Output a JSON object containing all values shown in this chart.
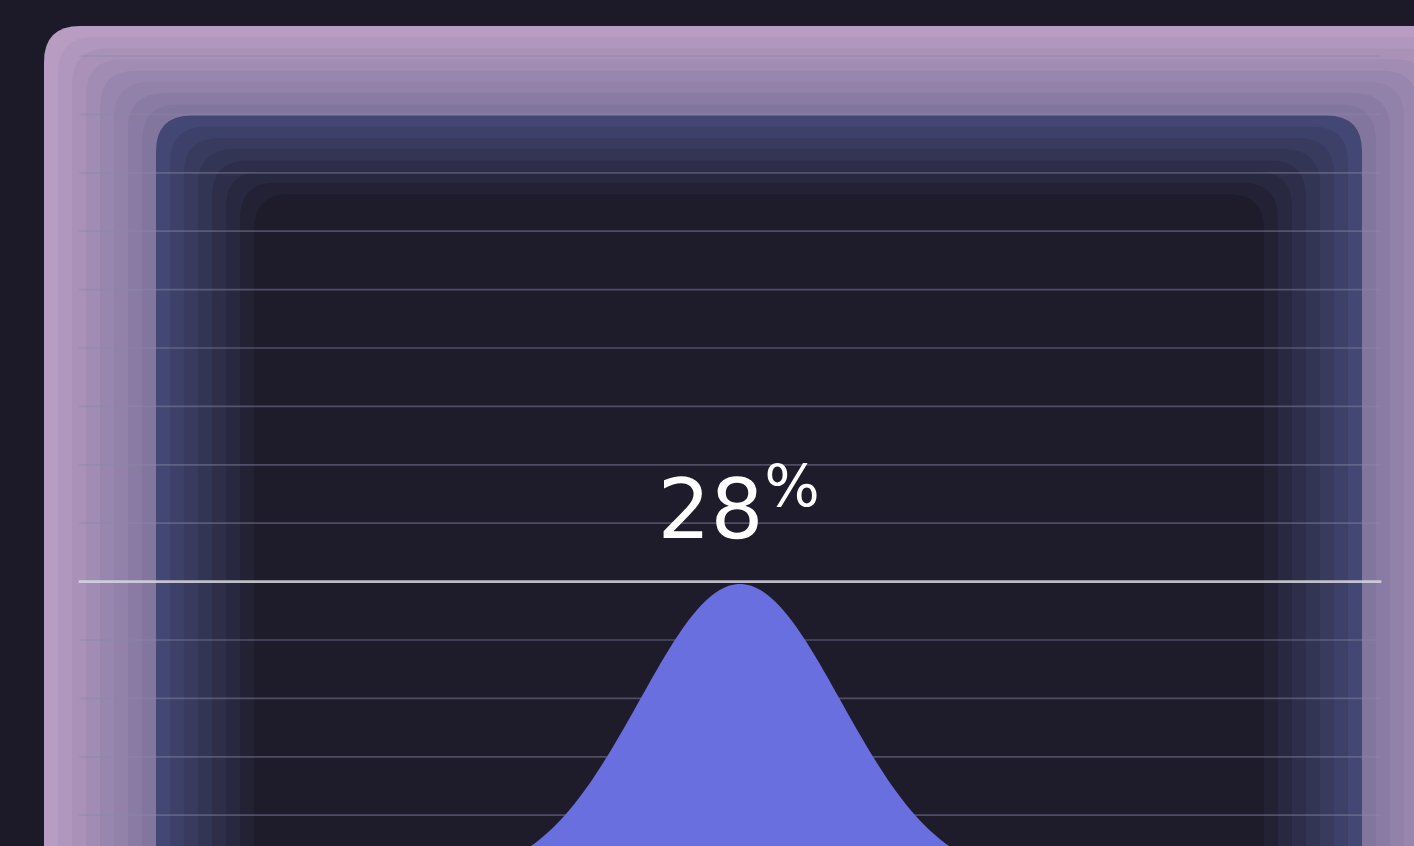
{
  "chart_data": {
    "type": "other",
    "values": [
      28
    ],
    "value_labels": [
      "28$^{%}$"
    ]
  }
}
